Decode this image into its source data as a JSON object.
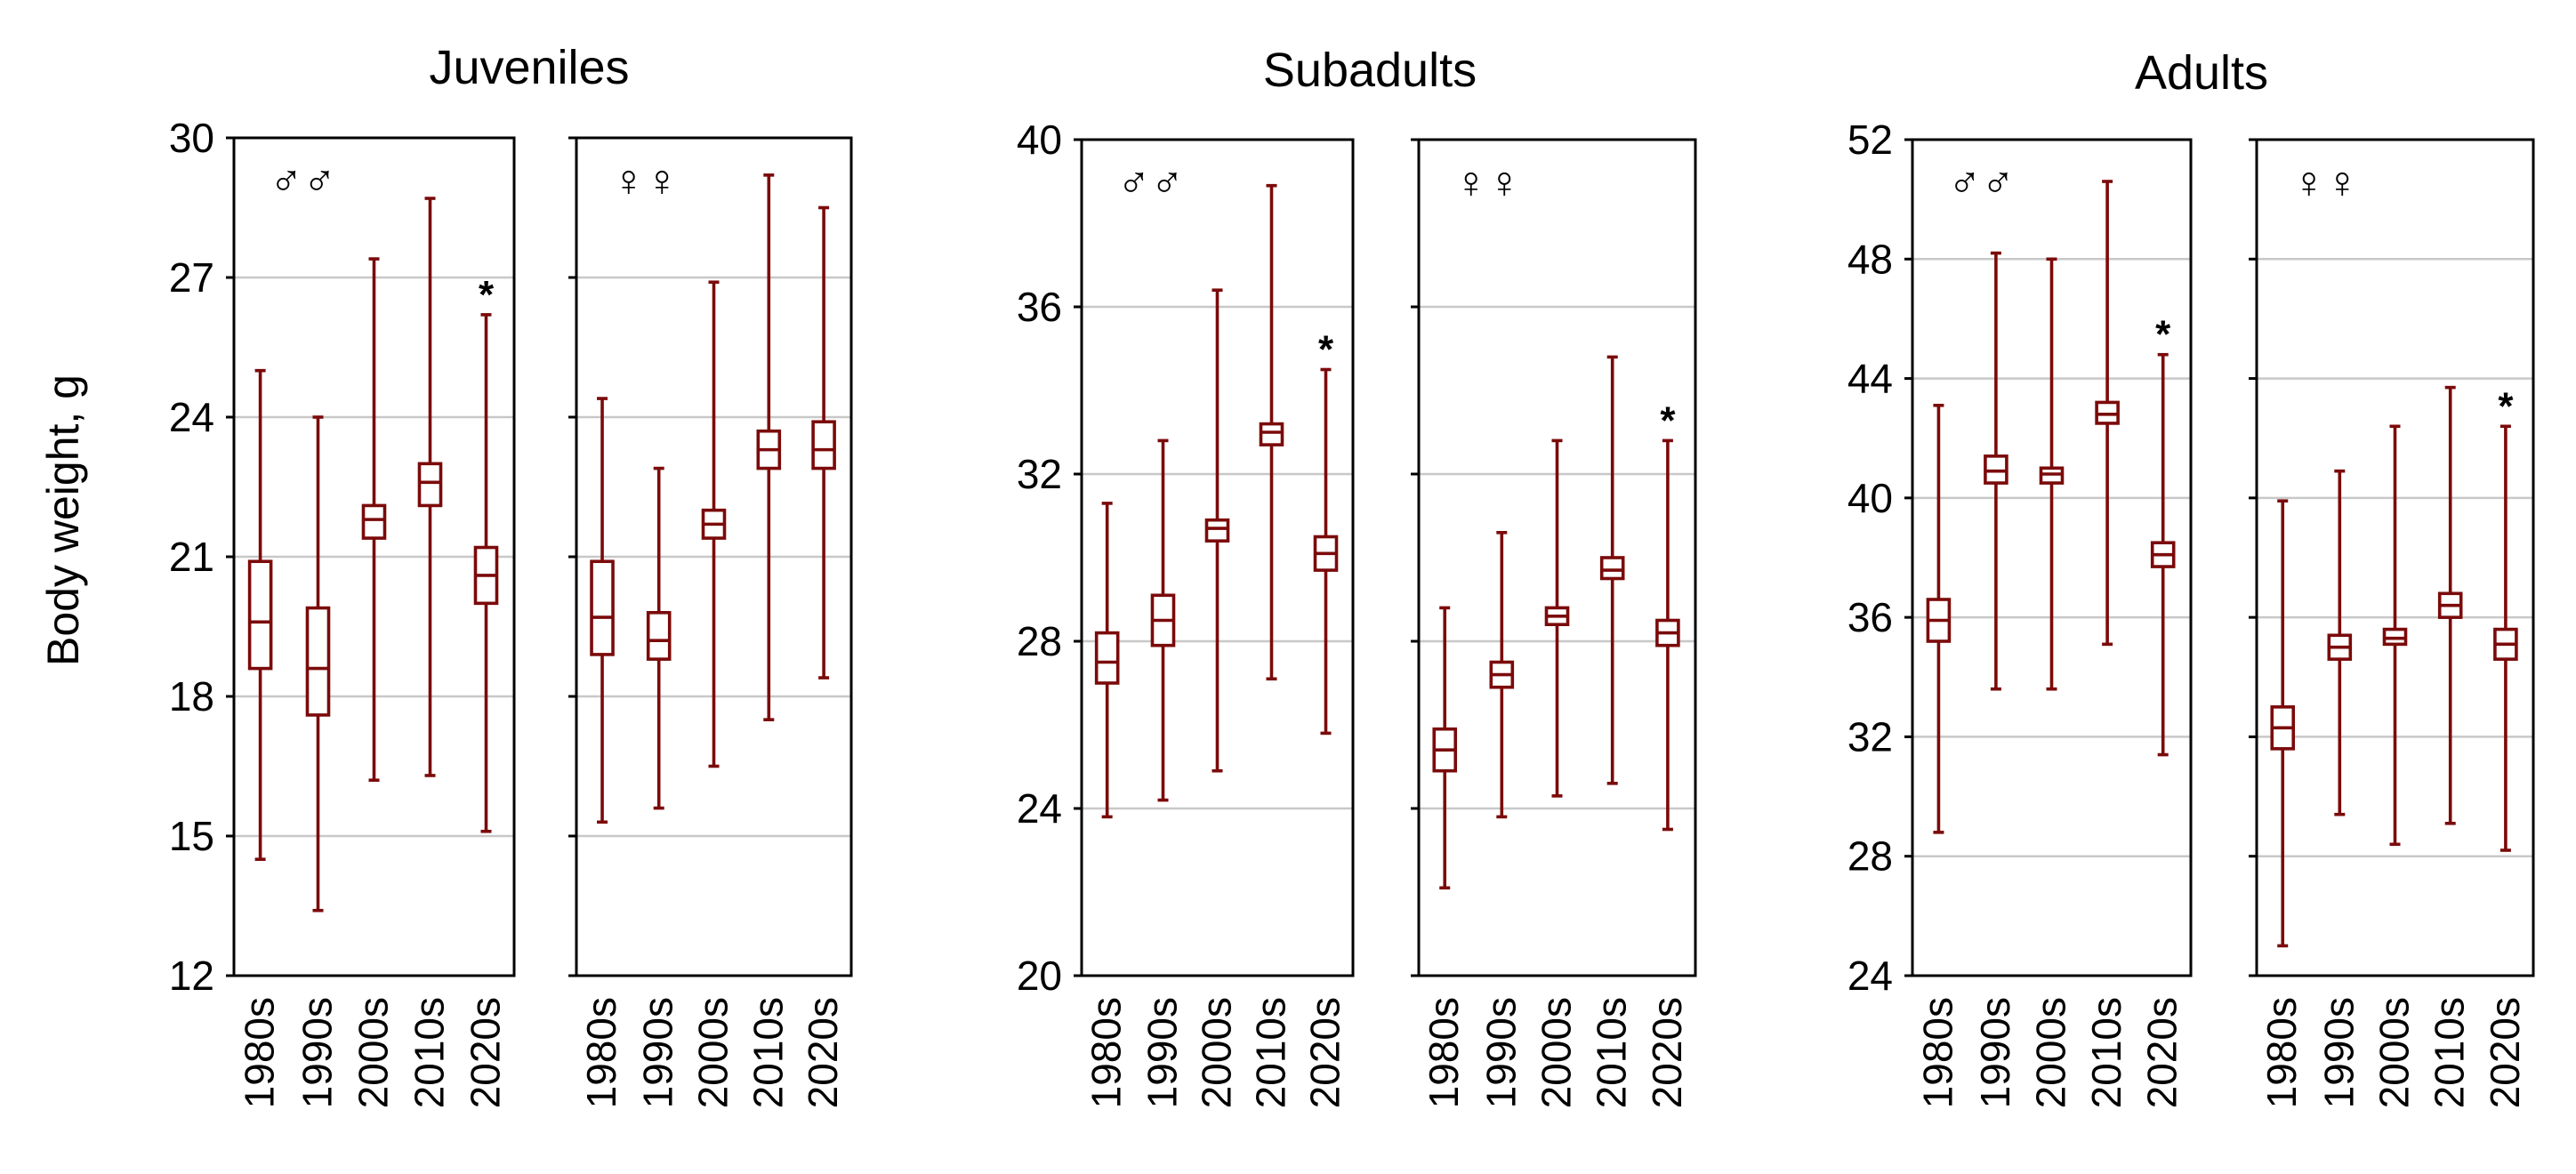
{
  "figure": {
    "ylabel": "Body weight, g",
    "box_color": "#7b0a0a",
    "grid_color": "#c8c8c8"
  },
  "chart_data": [
    {
      "type": "box",
      "group": "Juveniles",
      "sex": "♂♂",
      "ylim": [
        12,
        30
      ],
      "yticks": [
        "30",
        "27",
        "24",
        "21",
        "18",
        "15",
        "12"
      ],
      "ytick_values": [
        30,
        27,
        24,
        21,
        18,
        15,
        12
      ],
      "categories": [
        "1980s",
        "1990s",
        "2000s",
        "2010s",
        "2020s"
      ],
      "boxes": [
        {
          "whisker_low": 14.5,
          "q1": 18.6,
          "median": 19.6,
          "q3": 20.9,
          "whisker_high": 25.0
        },
        {
          "whisker_low": 13.4,
          "q1": 17.6,
          "median": 18.6,
          "q3": 19.9,
          "whisker_high": 24.0
        },
        {
          "whisker_low": 16.2,
          "q1": 21.4,
          "median": 21.8,
          "q3": 22.1,
          "whisker_high": 27.4
        },
        {
          "whisker_low": 16.3,
          "q1": 22.1,
          "median": 22.6,
          "q3": 23.0,
          "whisker_high": 28.7
        },
        {
          "whisker_low": 15.1,
          "q1": 20.0,
          "median": 20.6,
          "q3": 21.2,
          "whisker_high": 26.2
        }
      ],
      "annotations": [
        {
          "category": "2020s",
          "text": "*"
        }
      ]
    },
    {
      "type": "box",
      "group": "Juveniles",
      "sex": "♀♀",
      "ylim": [
        12,
        30
      ],
      "ytick_values": [
        30,
        27,
        24,
        21,
        18,
        15,
        12
      ],
      "categories": [
        "1980s",
        "1990s",
        "2000s",
        "2010s",
        "2020s"
      ],
      "boxes": [
        {
          "whisker_low": 15.3,
          "q1": 18.9,
          "median": 19.7,
          "q3": 20.9,
          "whisker_high": 24.4
        },
        {
          "whisker_low": 15.6,
          "q1": 18.8,
          "median": 19.2,
          "q3": 19.8,
          "whisker_high": 22.9
        },
        {
          "whisker_low": 16.5,
          "q1": 21.4,
          "median": 21.7,
          "q3": 22.0,
          "whisker_high": 26.9
        },
        {
          "whisker_low": 17.5,
          "q1": 22.9,
          "median": 23.3,
          "q3": 23.7,
          "whisker_high": 29.2
        },
        {
          "whisker_low": 18.4,
          "q1": 22.9,
          "median": 23.3,
          "q3": 23.9,
          "whisker_high": 28.5
        }
      ],
      "annotations": []
    },
    {
      "type": "box",
      "group": "Subadults",
      "sex": "♂♂",
      "ylim": [
        20,
        40
      ],
      "yticks": [
        "40",
        "36",
        "32",
        "28",
        "24",
        "20"
      ],
      "ytick_values": [
        40,
        36,
        32,
        28,
        24,
        20
      ],
      "categories": [
        "1980s",
        "1990s",
        "2000s",
        "2010s",
        "2020s"
      ],
      "boxes": [
        {
          "whisker_low": 23.8,
          "q1": 27.0,
          "median": 27.5,
          "q3": 28.2,
          "whisker_high": 31.3
        },
        {
          "whisker_low": 24.2,
          "q1": 27.9,
          "median": 28.5,
          "q3": 29.1,
          "whisker_high": 32.8
        },
        {
          "whisker_low": 24.9,
          "q1": 30.4,
          "median": 30.7,
          "q3": 30.9,
          "whisker_high": 36.4
        },
        {
          "whisker_low": 27.1,
          "q1": 32.7,
          "median": 33.0,
          "q3": 33.2,
          "whisker_high": 38.9
        },
        {
          "whisker_low": 25.8,
          "q1": 29.7,
          "median": 30.1,
          "q3": 30.5,
          "whisker_high": 34.5
        }
      ],
      "annotations": [
        {
          "category": "2020s",
          "text": "*"
        }
      ]
    },
    {
      "type": "box",
      "group": "Subadults",
      "sex": "♀♀",
      "ylim": [
        20,
        40
      ],
      "ytick_values": [
        40,
        36,
        32,
        28,
        24,
        20
      ],
      "categories": [
        "1980s",
        "1990s",
        "2000s",
        "2010s",
        "2020s"
      ],
      "boxes": [
        {
          "whisker_low": 22.1,
          "q1": 24.9,
          "median": 25.4,
          "q3": 25.9,
          "whisker_high": 28.8
        },
        {
          "whisker_low": 23.8,
          "q1": 26.9,
          "median": 27.2,
          "q3": 27.5,
          "whisker_high": 30.6
        },
        {
          "whisker_low": 24.3,
          "q1": 28.4,
          "median": 28.6,
          "q3": 28.8,
          "whisker_high": 32.8
        },
        {
          "whisker_low": 24.6,
          "q1": 29.5,
          "median": 29.7,
          "q3": 30.0,
          "whisker_high": 34.8
        },
        {
          "whisker_low": 23.5,
          "q1": 27.9,
          "median": 28.2,
          "q3": 28.5,
          "whisker_high": 32.8
        }
      ],
      "annotations": [
        {
          "category": "2020s",
          "text": "*"
        }
      ]
    },
    {
      "type": "box",
      "group": "Adults",
      "sex": "♂♂",
      "ylim": [
        24,
        52
      ],
      "yticks": [
        "52",
        "48",
        "44",
        "40",
        "36",
        "32",
        "28",
        "24"
      ],
      "ytick_values": [
        52,
        48,
        44,
        40,
        36,
        32,
        28,
        24
      ],
      "categories": [
        "1980s",
        "1990s",
        "2000s",
        "2010s",
        "2020s"
      ],
      "boxes": [
        {
          "whisker_low": 28.8,
          "q1": 35.2,
          "median": 35.9,
          "q3": 36.6,
          "whisker_high": 43.1
        },
        {
          "whisker_low": 33.6,
          "q1": 40.5,
          "median": 40.9,
          "q3": 41.4,
          "whisker_high": 48.2
        },
        {
          "whisker_low": 33.6,
          "q1": 40.5,
          "median": 40.8,
          "q3": 41.0,
          "whisker_high": 48.0
        },
        {
          "whisker_low": 35.1,
          "q1": 42.5,
          "median": 42.8,
          "q3": 43.2,
          "whisker_high": 50.6
        },
        {
          "whisker_low": 31.4,
          "q1": 37.7,
          "median": 38.1,
          "q3": 38.5,
          "whisker_high": 44.8
        }
      ],
      "annotations": [
        {
          "category": "2020s",
          "text": "*"
        }
      ]
    },
    {
      "type": "box",
      "group": "Adults",
      "sex": "♀♀",
      "ylim": [
        24,
        52
      ],
      "ytick_values": [
        52,
        48,
        44,
        40,
        36,
        32,
        28,
        24
      ],
      "categories": [
        "1980s",
        "1990s",
        "2000s",
        "2010s",
        "2020s"
      ],
      "boxes": [
        {
          "whisker_low": 25.0,
          "q1": 31.6,
          "median": 32.3,
          "q3": 33.0,
          "whisker_high": 39.9
        },
        {
          "whisker_low": 29.4,
          "q1": 34.6,
          "median": 35.0,
          "q3": 35.4,
          "whisker_high": 40.9
        },
        {
          "whisker_low": 28.4,
          "q1": 35.1,
          "median": 35.3,
          "q3": 35.6,
          "whisker_high": 42.4
        },
        {
          "whisker_low": 29.1,
          "q1": 36.0,
          "median": 36.4,
          "q3": 36.8,
          "whisker_high": 43.7
        },
        {
          "whisker_low": 28.2,
          "q1": 34.6,
          "median": 35.1,
          "q3": 35.6,
          "whisker_high": 42.4
        }
      ],
      "annotations": [
        {
          "category": "2020s",
          "text": "*"
        }
      ]
    }
  ]
}
